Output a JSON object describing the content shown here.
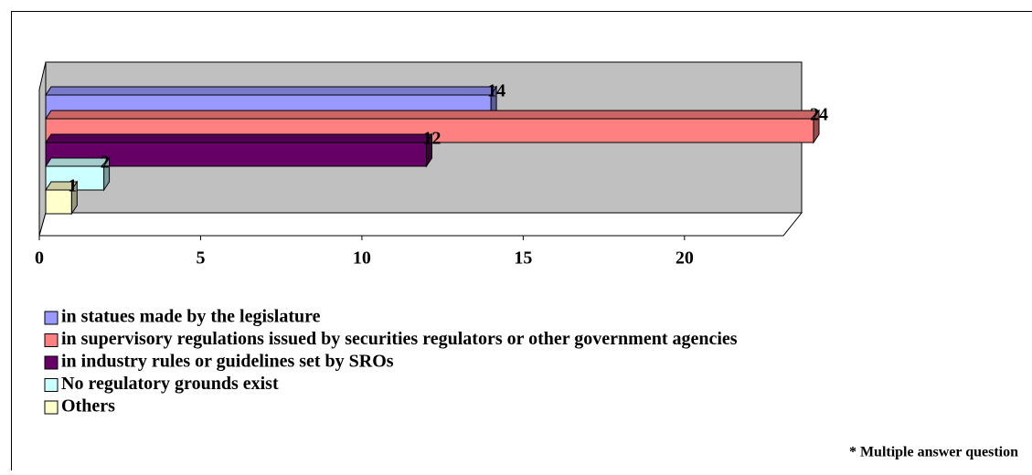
{
  "chart_data": {
    "type": "bar",
    "orientation": "horizontal",
    "series": [
      {
        "name": "in statues made by the legislature",
        "color": "#9999ff",
        "values": [
          14
        ]
      },
      {
        "name": "in supervisory regulations issued by securities regulators or other government agencies",
        "color": "#ff8080",
        "values": [
          24
        ]
      },
      {
        "name": "in industry rules or guidelines set by SROs",
        "color": "#660066",
        "values": [
          12
        ]
      },
      {
        "name": "No regulatory grounds exist",
        "color": "#ccffff",
        "values": [
          2
        ]
      },
      {
        "name": "Others",
        "color": "#ffffcc",
        "values": [
          1
        ]
      }
    ],
    "xlim": [
      0,
      24
    ],
    "xticks": [
      0,
      5,
      10,
      15,
      20
    ],
    "annotation": "* Multiple answer question"
  }
}
